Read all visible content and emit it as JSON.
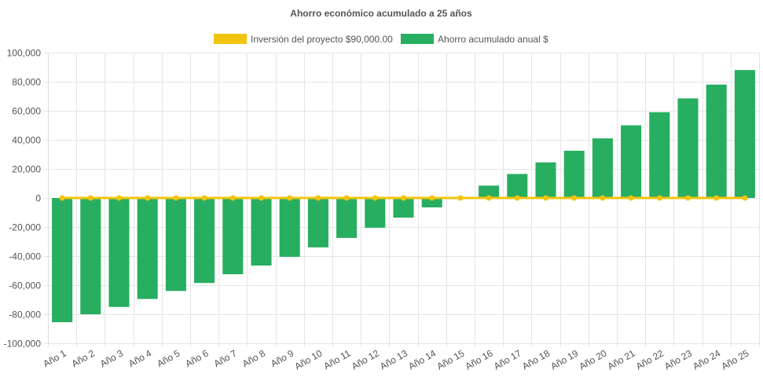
{
  "chart_data": {
    "type": "bar",
    "title": "Ahorro económico acumulado a 25 años",
    "categories": [
      "Año 1",
      "Año 2",
      "Año 3",
      "Año 4",
      "Año 5",
      "Año 6",
      "Año 7",
      "Año 8",
      "Año 9",
      "Año 10",
      "Año 11",
      "Año 12",
      "Año 13",
      "Año 14",
      "Año 15",
      "Año 16",
      "Año 17",
      "Año 18",
      "Año 19",
      "Año 20",
      "Año 21",
      "Año 22",
      "Año 23",
      "Año 24",
      "Año 25"
    ],
    "series": [
      {
        "name": "Inversión del proyecto $90,000.00",
        "type": "line",
        "color": "#f1c40f",
        "values": [
          0,
          0,
          0,
          0,
          0,
          0,
          0,
          0,
          0,
          0,
          0,
          0,
          0,
          0,
          0,
          0,
          0,
          0,
          0,
          0,
          0,
          0,
          0,
          0,
          0
        ]
      },
      {
        "name": "Ahorro acumulado anual $",
        "type": "bar",
        "color": "#27ae60",
        "values": [
          -85500,
          -80000,
          -75000,
          -69500,
          -64000,
          -58500,
          -52500,
          -46500,
          -40500,
          -34000,
          -27500,
          -20500,
          -13500,
          -6500,
          500,
          8500,
          16500,
          24500,
          32500,
          41000,
          50000,
          59000,
          68500,
          78000,
          88000
        ]
      }
    ],
    "ylim": [
      -100000,
      100000
    ],
    "yticks": [
      "100,000",
      "80,000",
      "60,000",
      "40,000",
      "20,000",
      "0",
      "-20,000",
      "-40,000",
      "-60,000",
      "-80,000",
      "-100,000"
    ],
    "ytick_values": [
      100000,
      80000,
      60000,
      40000,
      20000,
      0,
      -20000,
      -40000,
      -60000,
      -80000,
      -100000
    ],
    "xlabel": "",
    "ylabel": "",
    "grid": true,
    "legend_position": "top-center"
  }
}
